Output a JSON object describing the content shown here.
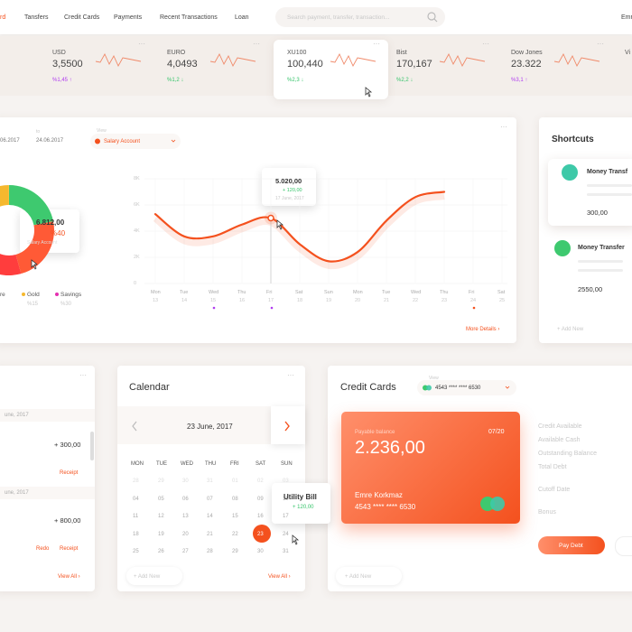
{
  "nav": {
    "items": [
      "rd",
      "Tansfers",
      "Credit Cards",
      "Payments",
      "Recent Transactions",
      "Loan"
    ],
    "search": "Search payment, transfer, transaction...",
    "user": "Emr"
  },
  "tickers": [
    {
      "name": "USD",
      "value": "3,5500",
      "change": "%1,45 ↑"
    },
    {
      "name": "EURO",
      "value": "4,0493",
      "change": "%1,2 ↓"
    },
    {
      "name": "XU100",
      "value": "100,440",
      "change": "%2,3 ↓"
    },
    {
      "name": "Bist",
      "value": "170,167",
      "change": "%2,2 ↓"
    },
    {
      "name": "Dow Jones",
      "value": "23.322",
      "change": "%3,1 ↑"
    },
    {
      "name": "Vi",
      "value": "",
      "change": ""
    }
  ],
  "overview": {
    "from": "06.2017",
    "to_label": "to",
    "to": "24.06.2017",
    "view_label": "View",
    "account": "Salary Account",
    "donut_tooltip": {
      "value": "6.812,00",
      "percent": "%40",
      "account": "Salary Account"
    },
    "legend": [
      {
        "name": "re",
        "percent": null
      },
      {
        "name": "Gold",
        "percent": "%15"
      },
      {
        "name": "Savings",
        "percent": "%30"
      }
    ],
    "more": "More Details ›"
  },
  "chart_data": {
    "type": "line",
    "categories": [
      "Mon",
      "Tue",
      "Wed",
      "Thu",
      "Fri",
      "Sat",
      "Sun",
      "Mon",
      "Tue",
      "Wed",
      "Thu",
      "Fri",
      "Sat"
    ],
    "dates": [
      "13",
      "14",
      "15",
      "16",
      "17",
      "18",
      "19",
      "20",
      "21",
      "22",
      "23",
      "24",
      "25"
    ],
    "series": [
      {
        "name": "Balance",
        "color": "#f4511e",
        "values": [
          5.3,
          3.6,
          3.6,
          4.5,
          5.0,
          3.0,
          1.7,
          2.4,
          4.8,
          6.6,
          7.0,
          null,
          null
        ]
      }
    ],
    "ylim": [
      0,
      8
    ],
    "yticks": [
      {
        "value": 0,
        "label": "0"
      },
      {
        "value": 2,
        "label": "2K"
      },
      {
        "value": 4,
        "label": "4K"
      },
      {
        "value": 6,
        "label": "6K"
      },
      {
        "value": 8,
        "label": "8K"
      }
    ],
    "grid": true,
    "tooltip": {
      "value": "5.020,00",
      "change": "+ 120,00",
      "date": "17 June, 2017"
    }
  },
  "shortcuts": {
    "title": "Shortcuts",
    "items": [
      {
        "name": "Money Transf",
        "amount": "300,00"
      },
      {
        "name": "Money Transfer",
        "amount": "2550,00"
      }
    ],
    "add": "+ Add New"
  },
  "transactions": {
    "groups": [
      {
        "date": "une, 2017",
        "amount": "+ 300,00",
        "actions": [
          "Receipt"
        ]
      },
      {
        "date": "une, 2017",
        "amount": "+ 800,00",
        "actions": [
          "Redo",
          "Receipt"
        ]
      }
    ],
    "view_all": "View All ›"
  },
  "calendar": {
    "title": "Calendar",
    "date": "23 June, 2017",
    "weekdays": [
      "MON",
      "TUE",
      "WED",
      "THU",
      "FRI",
      "SAT",
      "SUN"
    ],
    "rows": [
      [
        "28",
        "29",
        "30",
        "31",
        "01",
        "02",
        "03"
      ],
      [
        "04",
        "05",
        "06",
        "07",
        "08",
        "09",
        "10"
      ],
      [
        "11",
        "12",
        "13",
        "14",
        "15",
        "16",
        "17"
      ],
      [
        "18",
        "19",
        "20",
        "21",
        "22",
        "23",
        "24"
      ],
      [
        "25",
        "26",
        "27",
        "28",
        "29",
        "30",
        "31"
      ]
    ],
    "event": {
      "name": "Utility Bill",
      "amount": "+ 120,00"
    },
    "add": "+ Add New",
    "view_all": "View All ›"
  },
  "credit": {
    "title": "Credit Cards",
    "view_label": "View",
    "selected": "4543 **** **** 6530",
    "card": {
      "balance_label": "Payable balance",
      "balance": "2.236,00",
      "expiry": "07/20",
      "holder": "Emre Korkmaz",
      "number": "4543 **** **** 6530"
    },
    "details": [
      "Credit Available",
      "Available Cash",
      "Outstanding Balance",
      "Total Debt",
      "Cutoff Date",
      "Bonus"
    ],
    "pay": "Pay Debt",
    "add": "+ Add New"
  }
}
